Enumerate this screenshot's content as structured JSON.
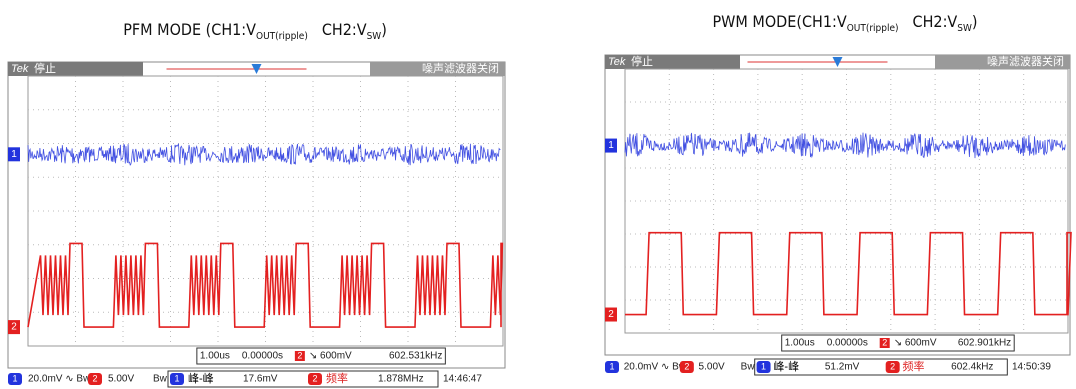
{
  "panels": [
    {
      "title": {
        "main": "PFM MODE (CH1:V",
        "sub1": "OUT(ripple)",
        "mid": "CH2:V",
        "sub2": "SW",
        "end": ")"
      },
      "screen": {
        "brand": "Tek",
        "state": "停止",
        "filter": "噪声滤波器关闭",
        "timebase": "1.00us",
        "position": "0.00000s",
        "trigger_channel": "2",
        "trigger": "↘ 600mV",
        "trigger_freq": "602.531kHz",
        "ch1_marker": "1",
        "ch2_marker": "2"
      },
      "status": {
        "ch1": "1",
        "ch1_scale": "20.0mV ∿ Bw",
        "ch2": "2",
        "ch2_scale": "5.00V",
        "ch2_bw": "Bw",
        "meas1_ch": "1",
        "meas1_name": "峰-峰",
        "meas1_value": "17.6mV",
        "meas2_ch": "2",
        "meas2_name": "频率",
        "meas2_value": "1.878MHz",
        "time": "14:46:47"
      }
    },
    {
      "title": {
        "main": "PWM MODE(CH1:V",
        "sub1": "OUT(ripple)",
        "mid": "CH2:V",
        "sub2": "SW",
        "end": ")"
      },
      "screen": {
        "brand": "Tek",
        "state": "停止",
        "filter": "噪声滤波器关闭",
        "timebase": "1.00us",
        "position": "0.00000s",
        "trigger_channel": "2",
        "trigger": "↘ 600mV",
        "trigger_freq": "602.901kHz",
        "ch1_marker": "1",
        "ch2_marker": "2"
      },
      "status": {
        "ch1": "1",
        "ch1_scale": "20.0mV ∿ Bw",
        "ch2": "2",
        "ch2_scale": "5.00V",
        "ch2_bw": "Bw",
        "meas1_ch": "1",
        "meas1_name": "峰-峰",
        "meas1_value": "51.2mV",
        "meas2_ch": "2",
        "meas2_name": "频率",
        "meas2_value": "602.4kHz",
        "time": "14:50:39"
      }
    }
  ]
}
